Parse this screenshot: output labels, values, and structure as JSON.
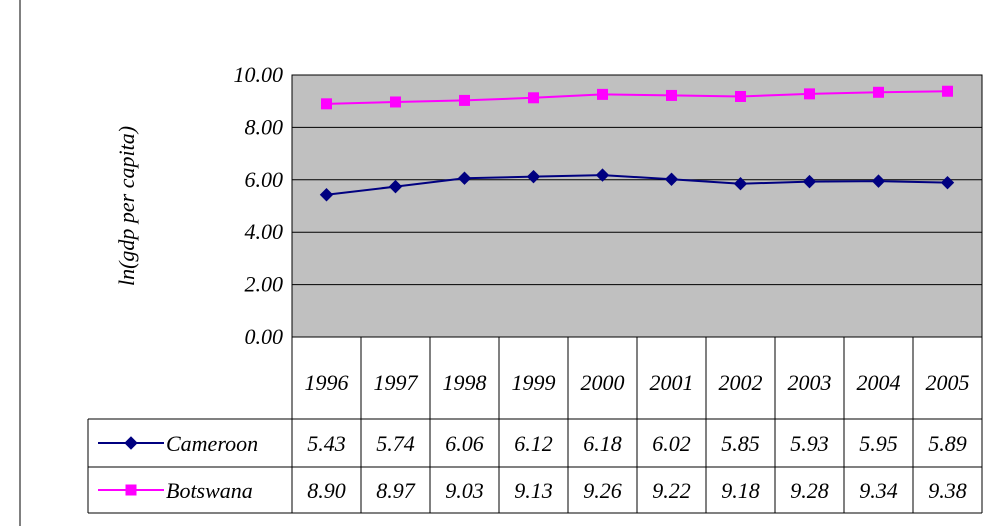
{
  "chart_data": {
    "type": "line",
    "title": "",
    "ylabel": "ln(gdp per capita)",
    "xlabel": "",
    "ylim": [
      0,
      10
    ],
    "yticks": [
      "0.00",
      "2.00",
      "4.00",
      "6.00",
      "8.00",
      "10.00"
    ],
    "categories": [
      "1996",
      "1997",
      "1998",
      "1999",
      "2000",
      "2001",
      "2002",
      "2003",
      "2004",
      "2005"
    ],
    "grid": true,
    "legend": "data-table-left",
    "series": [
      {
        "name": "Cameroon",
        "color": "#000080",
        "marker": "diamond",
        "values": [
          5.43,
          5.74,
          6.06,
          6.12,
          6.18,
          6.02,
          5.85,
          5.93,
          5.95,
          5.89
        ],
        "labels": [
          "5.43",
          "5.74",
          "6.06",
          "6.12",
          "6.18",
          "6.02",
          "5.85",
          "5.93",
          "5.95",
          "5.89"
        ]
      },
      {
        "name": "Botswana",
        "color": "#FF00FF",
        "marker": "square",
        "values": [
          8.9,
          8.97,
          9.03,
          9.13,
          9.26,
          9.22,
          9.18,
          9.28,
          9.34,
          9.38
        ],
        "labels": [
          "8.90",
          "8.97",
          "9.03",
          "9.13",
          "9.26",
          "9.22",
          "9.18",
          "9.28",
          "9.34",
          "9.38"
        ]
      }
    ],
    "plot_background": "#C0C0C0"
  }
}
